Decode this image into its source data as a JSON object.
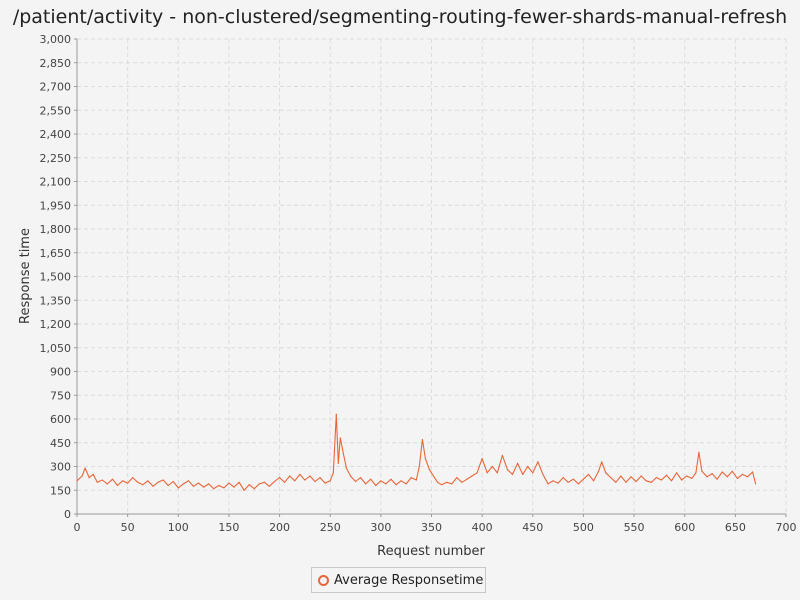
{
  "chart_data": {
    "type": "line",
    "title": "/patient/activity - non-clustered/segmenting-routing-fewer-shards-manual-refresh",
    "xlabel": "Request number",
    "ylabel": "Response time",
    "xlim": [
      0,
      700
    ],
    "ylim": [
      0,
      3000
    ],
    "xticks": [
      0,
      50,
      100,
      150,
      200,
      250,
      300,
      350,
      400,
      450,
      500,
      550,
      600,
      650,
      700
    ],
    "yticks": [
      0,
      150,
      300,
      450,
      600,
      750,
      900,
      1050,
      1200,
      1350,
      1500,
      1650,
      1800,
      1950,
      2100,
      2250,
      2400,
      2550,
      2700,
      2850,
      3000
    ],
    "x_tick_labels": [
      "0",
      "50",
      "100",
      "150",
      "200",
      "250",
      "300",
      "350",
      "400",
      "450",
      "500",
      "550",
      "600",
      "650",
      "700"
    ],
    "y_tick_labels": [
      "0",
      "150",
      "300",
      "450",
      "600",
      "750",
      "900",
      "1,050",
      "1,200",
      "1,350",
      "1,500",
      "1,650",
      "1,800",
      "1,950",
      "2,100",
      "2,250",
      "2,400",
      "2,550",
      "2,700",
      "2,850",
      "3,000"
    ],
    "grid": true,
    "legend_position": "bottom-center",
    "series": [
      {
        "name": "Average Responsetime",
        "color": "#e8663a",
        "points": [
          [
            0,
            210
          ],
          [
            5,
            240
          ],
          [
            8,
            290
          ],
          [
            12,
            230
          ],
          [
            16,
            250
          ],
          [
            20,
            200
          ],
          [
            25,
            215
          ],
          [
            30,
            190
          ],
          [
            35,
            220
          ],
          [
            40,
            180
          ],
          [
            45,
            210
          ],
          [
            50,
            195
          ],
          [
            55,
            230
          ],
          [
            60,
            200
          ],
          [
            65,
            185
          ],
          [
            70,
            210
          ],
          [
            75,
            175
          ],
          [
            80,
            200
          ],
          [
            85,
            215
          ],
          [
            90,
            180
          ],
          [
            95,
            205
          ],
          [
            100,
            165
          ],
          [
            105,
            190
          ],
          [
            110,
            210
          ],
          [
            115,
            175
          ],
          [
            120,
            195
          ],
          [
            125,
            170
          ],
          [
            130,
            190
          ],
          [
            135,
            160
          ],
          [
            140,
            180
          ],
          [
            145,
            165
          ],
          [
            150,
            195
          ],
          [
            155,
            170
          ],
          [
            160,
            200
          ],
          [
            165,
            150
          ],
          [
            170,
            185
          ],
          [
            175,
            160
          ],
          [
            180,
            190
          ],
          [
            185,
            200
          ],
          [
            190,
            175
          ],
          [
            195,
            205
          ],
          [
            200,
            230
          ],
          [
            205,
            200
          ],
          [
            210,
            240
          ],
          [
            215,
            210
          ],
          [
            220,
            250
          ],
          [
            225,
            215
          ],
          [
            230,
            240
          ],
          [
            235,
            205
          ],
          [
            240,
            230
          ],
          [
            245,
            195
          ],
          [
            250,
            210
          ],
          [
            253,
            260
          ],
          [
            256,
            630
          ],
          [
            258,
            320
          ],
          [
            260,
            480
          ],
          [
            263,
            380
          ],
          [
            266,
            290
          ],
          [
            270,
            240
          ],
          [
            275,
            205
          ],
          [
            280,
            230
          ],
          [
            285,
            190
          ],
          [
            290,
            220
          ],
          [
            295,
            180
          ],
          [
            300,
            210
          ],
          [
            305,
            190
          ],
          [
            310,
            220
          ],
          [
            315,
            185
          ],
          [
            320,
            210
          ],
          [
            325,
            190
          ],
          [
            330,
            230
          ],
          [
            335,
            215
          ],
          [
            338,
            300
          ],
          [
            341,
            470
          ],
          [
            344,
            350
          ],
          [
            348,
            280
          ],
          [
            352,
            240
          ],
          [
            356,
            200
          ],
          [
            360,
            185
          ],
          [
            365,
            200
          ],
          [
            370,
            190
          ],
          [
            375,
            230
          ],
          [
            380,
            200
          ],
          [
            385,
            220
          ],
          [
            390,
            240
          ],
          [
            395,
            260
          ],
          [
            400,
            350
          ],
          [
            405,
            260
          ],
          [
            410,
            300
          ],
          [
            415,
            260
          ],
          [
            420,
            370
          ],
          [
            425,
            280
          ],
          [
            430,
            250
          ],
          [
            435,
            320
          ],
          [
            440,
            250
          ],
          [
            445,
            300
          ],
          [
            450,
            260
          ],
          [
            455,
            330
          ],
          [
            460,
            250
          ],
          [
            465,
            190
          ],
          [
            470,
            210
          ],
          [
            475,
            195
          ],
          [
            480,
            230
          ],
          [
            485,
            200
          ],
          [
            490,
            220
          ],
          [
            495,
            190
          ],
          [
            500,
            220
          ],
          [
            505,
            250
          ],
          [
            510,
            210
          ],
          [
            515,
            270
          ],
          [
            518,
            330
          ],
          [
            522,
            260
          ],
          [
            527,
            230
          ],
          [
            532,
            200
          ],
          [
            537,
            240
          ],
          [
            542,
            200
          ],
          [
            547,
            235
          ],
          [
            552,
            205
          ],
          [
            557,
            240
          ],
          [
            562,
            210
          ],
          [
            567,
            200
          ],
          [
            572,
            230
          ],
          [
            577,
            215
          ],
          [
            582,
            245
          ],
          [
            587,
            210
          ],
          [
            592,
            260
          ],
          [
            597,
            215
          ],
          [
            602,
            240
          ],
          [
            607,
            225
          ],
          [
            611,
            260
          ],
          [
            614,
            390
          ],
          [
            617,
            270
          ],
          [
            622,
            235
          ],
          [
            627,
            255
          ],
          [
            632,
            220
          ],
          [
            637,
            265
          ],
          [
            642,
            235
          ],
          [
            647,
            270
          ],
          [
            652,
            225
          ],
          [
            657,
            250
          ],
          [
            662,
            235
          ],
          [
            667,
            265
          ],
          [
            670,
            190
          ]
        ]
      }
    ]
  }
}
